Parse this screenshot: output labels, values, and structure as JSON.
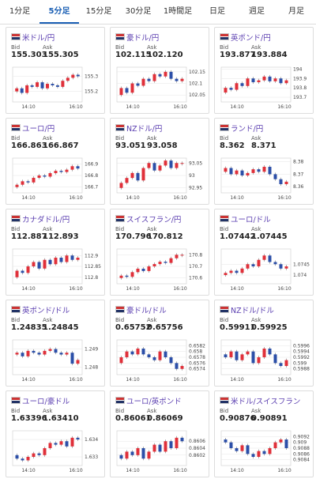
{
  "tabs": {
    "items": [
      "1分足",
      "5分足",
      "15分足",
      "30分足",
      "1時間足",
      "日足",
      "週足",
      "月足"
    ],
    "selected": 1
  },
  "labels": {
    "bid": "Bid",
    "ask": "Ask"
  },
  "panels": [
    {
      "name": "米ドル/円",
      "bid": "155.303",
      "ask": "155.305",
      "chart": {
        "ylim": [
          155.13,
          155.36
        ],
        "yticks": [
          155.3,
          155.2
        ],
        "xticks": [
          "14:10",
          "16:10"
        ],
        "values": [
          155.2,
          155.22,
          155.19,
          155.24,
          155.23,
          155.26,
          155.22,
          155.25,
          155.24,
          155.23,
          155.27,
          155.29,
          155.31,
          155.3
        ]
      }
    },
    {
      "name": "豪ドル/円",
      "bid": "102.115",
      "ask": "102.120",
      "chart": {
        "ylim": [
          102.02,
          102.17
        ],
        "yticks": [
          102.15,
          102.1,
          102.05
        ],
        "xticks": [
          "14:10",
          "16:10"
        ],
        "values": [
          102.05,
          102.08,
          102.06,
          102.1,
          102.09,
          102.12,
          102.11,
          102.14,
          102.13,
          102.15,
          102.12,
          102.11,
          102.12
        ]
      }
    },
    {
      "name": "英ポンド/円",
      "bid": "193.877",
      "ask": "193.884",
      "chart": {
        "ylim": [
          193.65,
          194.02
        ],
        "yticks": [
          194,
          193.9,
          193.8,
          193.7
        ],
        "xticks": [
          "14:10",
          "16:10"
        ],
        "values": [
          193.75,
          193.8,
          193.78,
          193.85,
          193.82,
          193.9,
          193.86,
          193.88,
          193.92,
          193.87,
          193.9,
          193.85,
          193.88
        ]
      }
    },
    {
      "name": "ユーロ/円",
      "bid": "166.863",
      "ask": "166.867",
      "chart": {
        "ylim": [
          166.65,
          166.95
        ],
        "yticks": [
          166.9,
          166.8,
          166.7
        ],
        "xticks": [
          "14:10",
          "16:10"
        ],
        "values": [
          166.7,
          166.72,
          166.75,
          166.74,
          166.78,
          166.8,
          166.79,
          166.82,
          166.84,
          166.83,
          166.85,
          166.88,
          166.86
        ]
      }
    },
    {
      "name": "NZドル/円",
      "bid": "93.051",
      "ask": "93.058",
      "chart": {
        "ylim": [
          92.93,
          93.07
        ],
        "yticks": [
          93.05,
          93,
          92.95
        ],
        "xticks": [
          "14:10",
          "16:10"
        ],
        "values": [
          92.95,
          92.97,
          92.99,
          93.01,
          92.98,
          93.03,
          93.05,
          93.02,
          93.04,
          93.06,
          93.03,
          93.05,
          93.05
        ]
      }
    },
    {
      "name": "ランド/円",
      "bid": "8.362",
      "ask": "8.371",
      "chart": {
        "ylim": [
          8.355,
          8.383
        ],
        "yticks": [
          8.38,
          8.37,
          8.36
        ],
        "xticks": [
          "14:10",
          "16:10"
        ],
        "values": [
          8.372,
          8.375,
          8.37,
          8.373,
          8.369,
          8.371,
          8.374,
          8.372,
          8.376,
          8.37,
          8.366,
          8.362,
          8.364
        ]
      }
    },
    {
      "name": "カナダドル/円",
      "bid": "112.887",
      "ask": "112.893",
      "chart": {
        "ylim": [
          112.77,
          112.93
        ],
        "yticks": [
          112.9,
          112.85,
          112.8
        ],
        "xticks": [
          "14:10",
          "16:10"
        ],
        "values": [
          112.8,
          112.83,
          112.82,
          112.85,
          112.87,
          112.84,
          112.88,
          112.86,
          112.89,
          112.87,
          112.9,
          112.88,
          112.89
        ]
      }
    },
    {
      "name": "スイスフラン/円",
      "bid": "170.796",
      "ask": "170.812",
      "chart": {
        "ylim": [
          170.55,
          170.85
        ],
        "yticks": [
          170.8,
          170.7,
          170.6
        ],
        "xticks": [
          "14:10",
          "16:10"
        ],
        "values": [
          170.6,
          170.62,
          170.61,
          170.65,
          170.68,
          170.66,
          170.7,
          170.72,
          170.74,
          170.73,
          170.77,
          170.8,
          170.8
        ]
      }
    },
    {
      "name": "ユーロ/ドル",
      "bid": "1.07442",
      "ask": "1.07445",
      "chart": {
        "ylim": [
          1.0736,
          1.0752
        ],
        "yticks": [
          1.0745,
          1.074
        ],
        "xticks": [
          "14:10",
          "16:10"
        ],
        "values": [
          1.074,
          1.0741,
          1.0742,
          1.0741,
          1.0743,
          1.0745,
          1.0744,
          1.0747,
          1.0749,
          1.0746,
          1.0745,
          1.0743,
          1.0744
        ]
      }
    },
    {
      "name": "英ポンド/ドル",
      "bid": "1.24835",
      "ask": "1.24845",
      "chart": {
        "ylim": [
          1.2476,
          1.2495
        ],
        "yticks": [
          1.249,
          1.248
        ],
        "xticks": [
          "14:10",
          "16:10"
        ],
        "values": [
          1.2487,
          1.2488,
          1.2486,
          1.2489,
          1.2488,
          1.2487,
          1.2489,
          1.249,
          1.2488,
          1.2487,
          1.2488,
          1.2482,
          1.2484
        ]
      }
    },
    {
      "name": "豪ドル/ドル",
      "bid": "0.65752",
      "ask": "0.65756",
      "chart": {
        "ylim": [
          0.6572,
          0.6584
        ],
        "yticks": [
          0.6582,
          0.658,
          0.6578,
          0.6576,
          0.6574
        ],
        "xticks": [
          "14:10",
          "16:10"
        ],
        "values": [
          0.6576,
          0.6578,
          0.658,
          0.6579,
          0.6581,
          0.6579,
          0.6578,
          0.6577,
          0.658,
          0.6578,
          0.6576,
          0.6574,
          0.6575
        ]
      }
    },
    {
      "name": "NZドル/ドル",
      "bid": "0.59911",
      "ask": "0.59925",
      "chart": {
        "ylim": [
          0.5986,
          0.5998
        ],
        "yticks": [
          0.5996,
          0.5994,
          0.5992,
          0.599,
          0.5988
        ],
        "xticks": [
          "14:10",
          "16:10"
        ],
        "values": [
          0.5993,
          0.5992,
          0.5994,
          0.5991,
          0.5993,
          0.5994,
          0.599,
          0.5992,
          0.5995,
          0.5993,
          0.599,
          0.5989,
          0.5991
        ]
      }
    },
    {
      "name": "ユーロ/豪ドル",
      "bid": "1.63396",
      "ask": "1.63410",
      "chart": {
        "ylim": [
          1.6325,
          1.6345
        ],
        "yticks": [
          1.634,
          1.633
        ],
        "xticks": [
          "14:10",
          "16:10"
        ],
        "values": [
          1.6331,
          1.6329,
          1.6328,
          1.633,
          1.6332,
          1.6331,
          1.6335,
          1.6338,
          1.6337,
          1.6339,
          1.6336,
          1.6341,
          1.634
        ]
      }
    },
    {
      "name": "ユーロ/英ポンド",
      "bid": "0.86061",
      "ask": "0.86069",
      "chart": {
        "ylim": [
          0.8599,
          0.8609
        ],
        "yticks": [
          0.8606,
          0.8604,
          0.8602
        ],
        "xticks": [
          "14:10",
          "16:10"
        ],
        "values": [
          0.8602,
          0.8601,
          0.8603,
          0.8602,
          0.8604,
          0.8601,
          0.8603,
          0.8605,
          0.8603,
          0.8606,
          0.8604,
          0.8607,
          0.8606
        ]
      }
    },
    {
      "name": "米ドル/スイスフラン",
      "bid": "0.90876",
      "ask": "0.90891",
      "chart": {
        "ylim": [
          0.9082,
          0.9094
        ],
        "yticks": [
          0.9092,
          0.909,
          0.9088,
          0.9086,
          0.9084
        ],
        "xticks": [
          "14:10",
          "16:10"
        ],
        "values": [
          0.9091,
          0.909,
          0.9088,
          0.9087,
          0.9089,
          0.9086,
          0.9085,
          0.9087,
          0.9086,
          0.9088,
          0.909,
          0.9091,
          0.9088
        ]
      }
    }
  ]
}
